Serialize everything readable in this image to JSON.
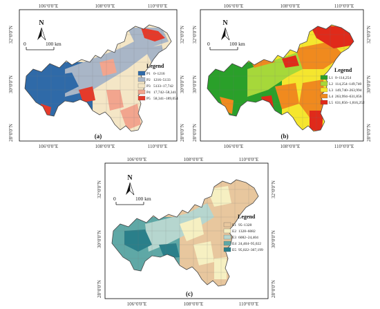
{
  "panels": [
    {
      "id": "a",
      "label": "(a)",
      "legend_title": "Legend",
      "ticks_x": [
        "106°0'0\"E",
        "108°0'0\"E",
        "110°0'0\"E"
      ],
      "ticks_y": [
        "32°0'0\"N",
        "30°0'0\"N",
        "28°0'0\"N"
      ],
      "north": "N",
      "scale_start": "0",
      "scale_end": "100 km",
      "classes": [
        {
          "code": "P1",
          "range": "0–1216",
          "color": "#2f6aa8"
        },
        {
          "code": "P2",
          "range": "1216–5133",
          "color": "#a9b6c7"
        },
        {
          "code": "P3",
          "range": "5133–17,742",
          "color": "#f4e6c6"
        },
        {
          "code": "P4",
          "range": "17,742–58,341",
          "color": "#f2a58e"
        },
        {
          "code": "P5",
          "range": "58,341–189,054",
          "color": "#e53a2a"
        }
      ]
    },
    {
      "id": "b",
      "label": "(b)",
      "legend_title": "Legend",
      "ticks_x": [
        "106°0'0\"E",
        "108°0'0\"E",
        "110°0'0\"E"
      ],
      "ticks_y": [
        "32°0'0\"N",
        "30°0'0\"N",
        "28°0'0\"N"
      ],
      "north": "N",
      "scale_start": "0",
      "scale_end": "100 km",
      "classes": [
        {
          "code": "L1",
          "range": "0–114,254",
          "color": "#2aa02a"
        },
        {
          "code": "L2",
          "range": "114,254–149,740",
          "color": "#a6d83a"
        },
        {
          "code": "L3",
          "range": "149,740–263,994",
          "color": "#f5e62e"
        },
        {
          "code": "L4",
          "range": "263,994–631,856",
          "color": "#f08a1e"
        },
        {
          "code": "L5",
          "range": "631,856–1,816,252",
          "color": "#e02a1a"
        }
      ]
    },
    {
      "id": "c",
      "label": "(c)",
      "legend_title": "Legend",
      "ticks_x": [
        "106°0'0\"E",
        "108°0'0\"E",
        "110°0'0\"E"
      ],
      "ticks_y": [
        "32°0'0\"N",
        "30°0'0\"N",
        "28°0'0\"N"
      ],
      "north": "N",
      "scale_start": "0",
      "scale_end": "100 km",
      "classes": [
        {
          "code": "E1",
          "range": "95–1328",
          "color": "#e8c79e"
        },
        {
          "code": "E2",
          "range": "1328–6082",
          "color": "#f6f0c2"
        },
        {
          "code": "E3",
          "range": "6082–24,404",
          "color": "#b6d6cf"
        },
        {
          "code": "E4",
          "range": "24,404–95,022",
          "color": "#5fa8a6"
        },
        {
          "code": "E5",
          "range": "95,022–367,199",
          "color": "#2a7f8a"
        }
      ]
    }
  ]
}
